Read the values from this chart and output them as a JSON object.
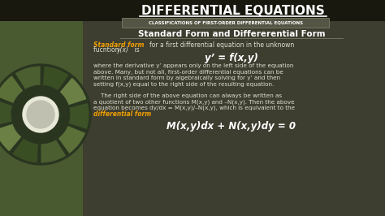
{
  "title": "DIFFERENTIAL EQUATIONS",
  "subtitle": "CLASSIFICATIONS OF FIRST-ORDER DIFFERENTIAL EQUATIONS",
  "section_title": "Standard Form and Differerential Form",
  "formula_1": "y’ = f(x,y)",
  "formula_2": "M(x,y)dx + N(x,y)dy = 0",
  "para1_lines": [
    "where the derivative y’ appears only on the left side of the equation",
    "above. Many, but not all, first-order differential equations can be",
    "written in standard form by algebraically solving for y’ and then",
    "setting f(x,y) equal to the right side of the resulting equation."
  ],
  "para2_lines": [
    "    The right side of the above equation can always be written as",
    "a quotient of two other functions M(x,y) and –N(x,y). Then the above",
    "equation becomes dy/dx = M(x,y)/–N(x,y), which is equivalent to the"
  ],
  "colored_phrase": "differential form",
  "bg_outer": "#3a3a2e",
  "bg_header": "#18180f",
  "bg_content": "#3d3d30",
  "bg_left": "#4a5a30",
  "color_title": "#ffffff",
  "color_subtitle": "#ffffff",
  "color_section": "#ffffff",
  "color_body": "#e0e0d0",
  "color_orange": "#f0a000",
  "color_formula": "#ffffff",
  "subtitle_box_color": "#555545",
  "wheel_colors": [
    "#4a5e30",
    "#5a7038",
    "#3e5228",
    "#6a8045",
    "#3a4e24"
  ]
}
